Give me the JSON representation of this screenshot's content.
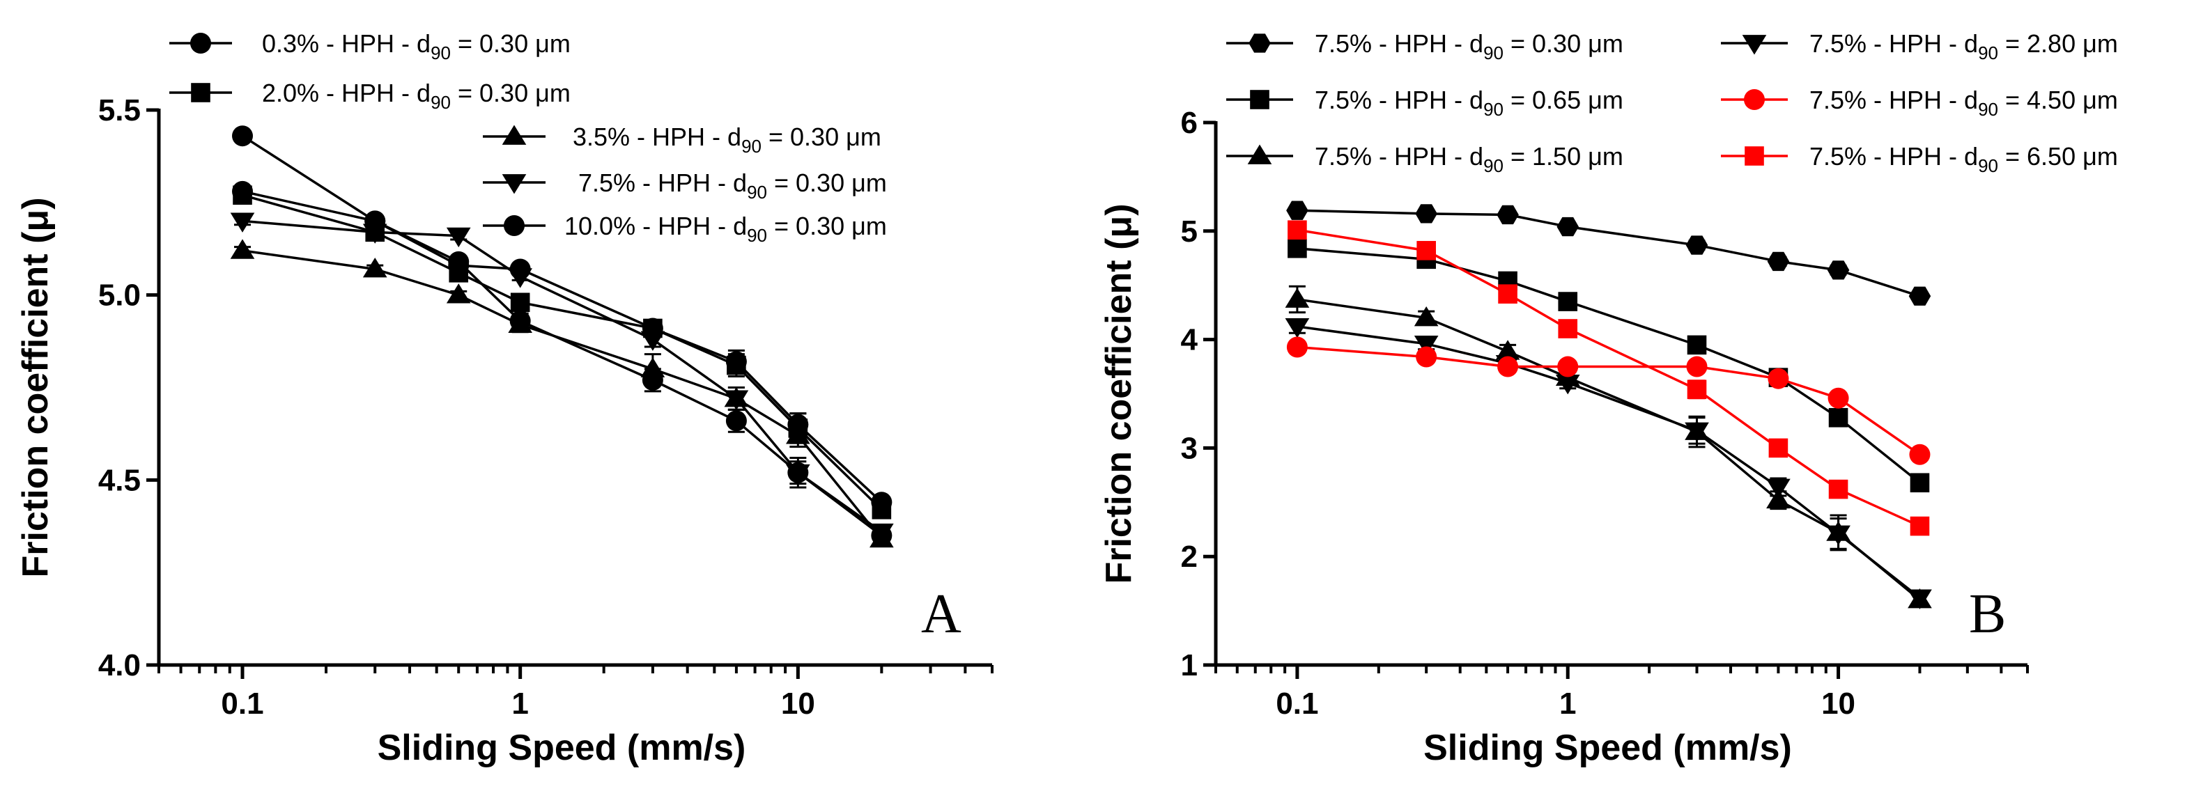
{
  "chart_data": [
    {
      "type": "line",
      "panel_label": "A",
      "xlabel": "Sliding Speed (mm/s)",
      "ylabel": "Friction coefficient  (μ)",
      "xscale": "log",
      "xlim": [
        0.05,
        50
      ],
      "ylim": [
        4.0,
        5.5
      ],
      "xticks": [
        0.1,
        1,
        10
      ],
      "xtick_labels": [
        "0.1",
        "1",
        "10"
      ],
      "yticks": [
        4.0,
        4.5,
        5.0,
        5.5
      ],
      "ytick_labels": [
        "4.0",
        "4.5",
        "5.0",
        "5.5"
      ],
      "grid": false,
      "legend_position": "top",
      "x": [
        0.1,
        0.3,
        0.6,
        1,
        3,
        6,
        10,
        20
      ],
      "series": [
        {
          "name_main": "0.3% - HPH - d",
          "name_sub": "90",
          "name_tail": " = 0.30 μm",
          "marker": "circle",
          "color": "#000000",
          "values": [
            5.43,
            5.2,
            5.08,
            5.07,
            4.91,
            4.82,
            4.65,
            4.44
          ],
          "errors": [
            0.01,
            0.01,
            0.01,
            0.01,
            0.02,
            0.03,
            0.03,
            0.01
          ]
        },
        {
          "name_main": "2.0% - HPH - d",
          "name_sub": "90",
          "name_tail": "  = 0.30 μm",
          "marker": "square",
          "color": "#000000",
          "values": [
            5.27,
            5.17,
            5.06,
            4.98,
            4.91,
            4.81,
            4.64,
            4.42
          ],
          "errors": [
            0.02,
            0.01,
            0.01,
            0.01,
            0.02,
            0.03,
            0.04,
            0.02
          ]
        },
        {
          "name_main": "3.5% - HPH - d",
          "name_sub": "90",
          "name_tail": "  = 0.30 μm",
          "marker": "triangle-up",
          "color": "#000000",
          "values": [
            5.12,
            5.07,
            5.0,
            4.92,
            4.8,
            4.72,
            4.62,
            4.34
          ],
          "errors": [
            0.01,
            0.01,
            0.01,
            0.02,
            0.04,
            0.03,
            0.03,
            0.01
          ]
        },
        {
          "name_main": "7.5% - HPH - d",
          "name_sub": "90",
          "name_tail": "  = 0.30 μm",
          "marker": "triangle-down",
          "color": "#000000",
          "values": [
            5.2,
            5.17,
            5.16,
            5.05,
            4.88,
            4.72,
            4.52,
            4.36
          ],
          "errors": [
            0.01,
            0.01,
            0.01,
            0.01,
            0.02,
            0.03,
            0.03,
            0.01
          ]
        },
        {
          "name_main": "10.0% - HPH - d",
          "name_sub": "90",
          "name_tail": " = 0.30 μm",
          "marker": "circle",
          "color": "#000000",
          "values": [
            5.28,
            5.2,
            5.09,
            4.93,
            4.77,
            4.66,
            4.52,
            4.35
          ],
          "errors": [
            0.01,
            0.01,
            0.01,
            0.02,
            0.03,
            0.03,
            0.04,
            0.01
          ]
        }
      ]
    },
    {
      "type": "line",
      "panel_label": "B",
      "xlabel": "Sliding Speed (mm/s)",
      "ylabel": "Friction coefficient  (μ)",
      "xscale": "log",
      "xlim": [
        0.05,
        50
      ],
      "ylim": [
        1,
        6
      ],
      "xticks": [
        0.1,
        1,
        10
      ],
      "xtick_labels": [
        "0.1",
        "1",
        "10"
      ],
      "yticks": [
        1,
        2,
        3,
        4,
        5,
        6
      ],
      "ytick_labels": [
        "1",
        "2",
        "3",
        "4",
        "5",
        "6"
      ],
      "grid": false,
      "legend_position": "top",
      "x": [
        0.1,
        0.3,
        0.6,
        1,
        3,
        6,
        10,
        20
      ],
      "series": [
        {
          "name_main": "7.5% - HPH - d",
          "name_sub": "90",
          "name_tail": " = 0.30 μm",
          "marker": "hexagon",
          "color": "#000000",
          "values": [
            5.19,
            5.16,
            5.15,
            5.04,
            4.87,
            4.72,
            4.64,
            4.4
          ],
          "errors": [
            0.03,
            0.03,
            0.03,
            0.03,
            0.04,
            0.04,
            0.04,
            0.03
          ]
        },
        {
          "name_main": "7.5% - HPH - d",
          "name_sub": "90",
          "name_tail": " = 0.65 μm",
          "marker": "square",
          "color": "#000000",
          "values": [
            4.84,
            4.74,
            4.54,
            4.35,
            3.95,
            3.65,
            3.28,
            2.68
          ],
          "errors": [
            0.05,
            0.05,
            0.06,
            0.05,
            0.05,
            0.05,
            0.06,
            0.05
          ]
        },
        {
          "name_main": "7.5% - HPH - d",
          "name_sub": "90",
          "name_tail": " = 1.50 μm",
          "marker": "triangle-up",
          "color": "#000000",
          "values": [
            4.37,
            4.2,
            3.89,
            3.65,
            3.15,
            2.52,
            2.22,
            1.6
          ],
          "errors": [
            0.12,
            0.06,
            0.06,
            0.05,
            0.14,
            0.08,
            0.16,
            0.05
          ]
        },
        {
          "name_main": "7.5% - HPH - d",
          "name_sub": "90",
          "name_tail": " = 2.80 μm",
          "marker": "triangle-down",
          "color": "#000000",
          "values": [
            4.12,
            3.96,
            3.78,
            3.6,
            3.16,
            2.64,
            2.21,
            1.62
          ],
          "errors": [
            0.06,
            0.05,
            0.05,
            0.05,
            0.12,
            0.08,
            0.14,
            0.05
          ]
        },
        {
          "name_main": "7.5% - HPH - d",
          "name_sub": "90",
          "name_tail": " = 4.50 μm",
          "marker": "circle",
          "color": "#ff0000",
          "values": [
            3.93,
            3.84,
            3.75,
            3.75,
            3.75,
            3.64,
            3.46,
            2.94
          ],
          "errors": [
            0.04,
            0.04,
            0.04,
            0.04,
            0.04,
            0.04,
            0.04,
            0.04
          ]
        },
        {
          "name_main": "7.5% - HPH - d",
          "name_sub": "90",
          "name_tail": " = 6.50 μm",
          "marker": "square",
          "color": "#ff0000",
          "values": [
            5.01,
            4.82,
            4.42,
            4.1,
            3.54,
            3.0,
            2.62,
            2.28
          ],
          "errors": [
            0.06,
            0.05,
            0.06,
            0.06,
            0.08,
            0.06,
            0.05,
            0.05
          ]
        }
      ]
    }
  ]
}
